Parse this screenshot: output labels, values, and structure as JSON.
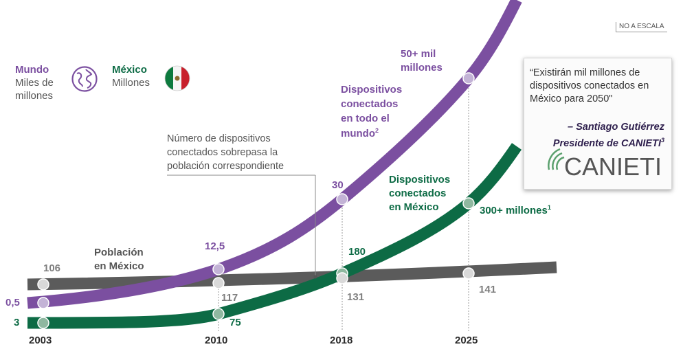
{
  "note": "NO A ESCALA",
  "legend": {
    "world": {
      "title": "Mundo",
      "line1": "Miles de",
      "line2": "millones",
      "icon": "globe-icon"
    },
    "mexico": {
      "title": "México",
      "line1": "Millones",
      "icon": "mexico-flag-icon"
    }
  },
  "annotations": {
    "world_top_l1": "50+ mil",
    "world_top_l2": "millones",
    "world_series_l1": "Dispositivos",
    "world_series_l2": "conectados",
    "world_series_l3": "en todo el",
    "world_series_l4": "mundo",
    "world_series_sup": "2",
    "mx_series_l1": "Dispositivos",
    "mx_series_l2": "conectados",
    "mx_series_l3": "en México",
    "mx_top": "300+ millones",
    "mx_top_sup": "1",
    "pop_l1": "Población",
    "pop_l2": "en México",
    "crossover_l1": "Número de dispositivos",
    "crossover_l2": "conectados sobrepasa la",
    "crossover_l3": "población correspondiente"
  },
  "quote": {
    "text": "“Existirán mil millones de dispositivos conectados en México para 2050\"",
    "author_l1": "– Santiago Gutiérrez",
    "author_l2": "Presidente de CANIETI",
    "author_sup": "3",
    "logo_text": "CANIETI"
  },
  "chart_data": {
    "type": "line",
    "x": [
      2003,
      2010,
      2018,
      2025
    ],
    "x_tick_labels": [
      "2003",
      "2010",
      "2018",
      "2025"
    ],
    "series": [
      {
        "name": "Mundo",
        "unit": "Miles de millones",
        "color": "#7b4fa0",
        "values": [
          0.5,
          12.5,
          30,
          50
        ],
        "labels": [
          "0,5",
          "12,5",
          "30",
          ""
        ]
      },
      {
        "name": "México",
        "unit": "Millones",
        "color": "#0d6b45",
        "values": [
          3,
          75,
          180,
          300
        ],
        "labels": [
          "3",
          "75",
          "180",
          ""
        ]
      },
      {
        "name": "Población en México",
        "unit": "Millones",
        "color": "#595959",
        "values": [
          106,
          117,
          131,
          141
        ],
        "labels": [
          "106",
          "117",
          "131",
          "141"
        ]
      }
    ]
  }
}
